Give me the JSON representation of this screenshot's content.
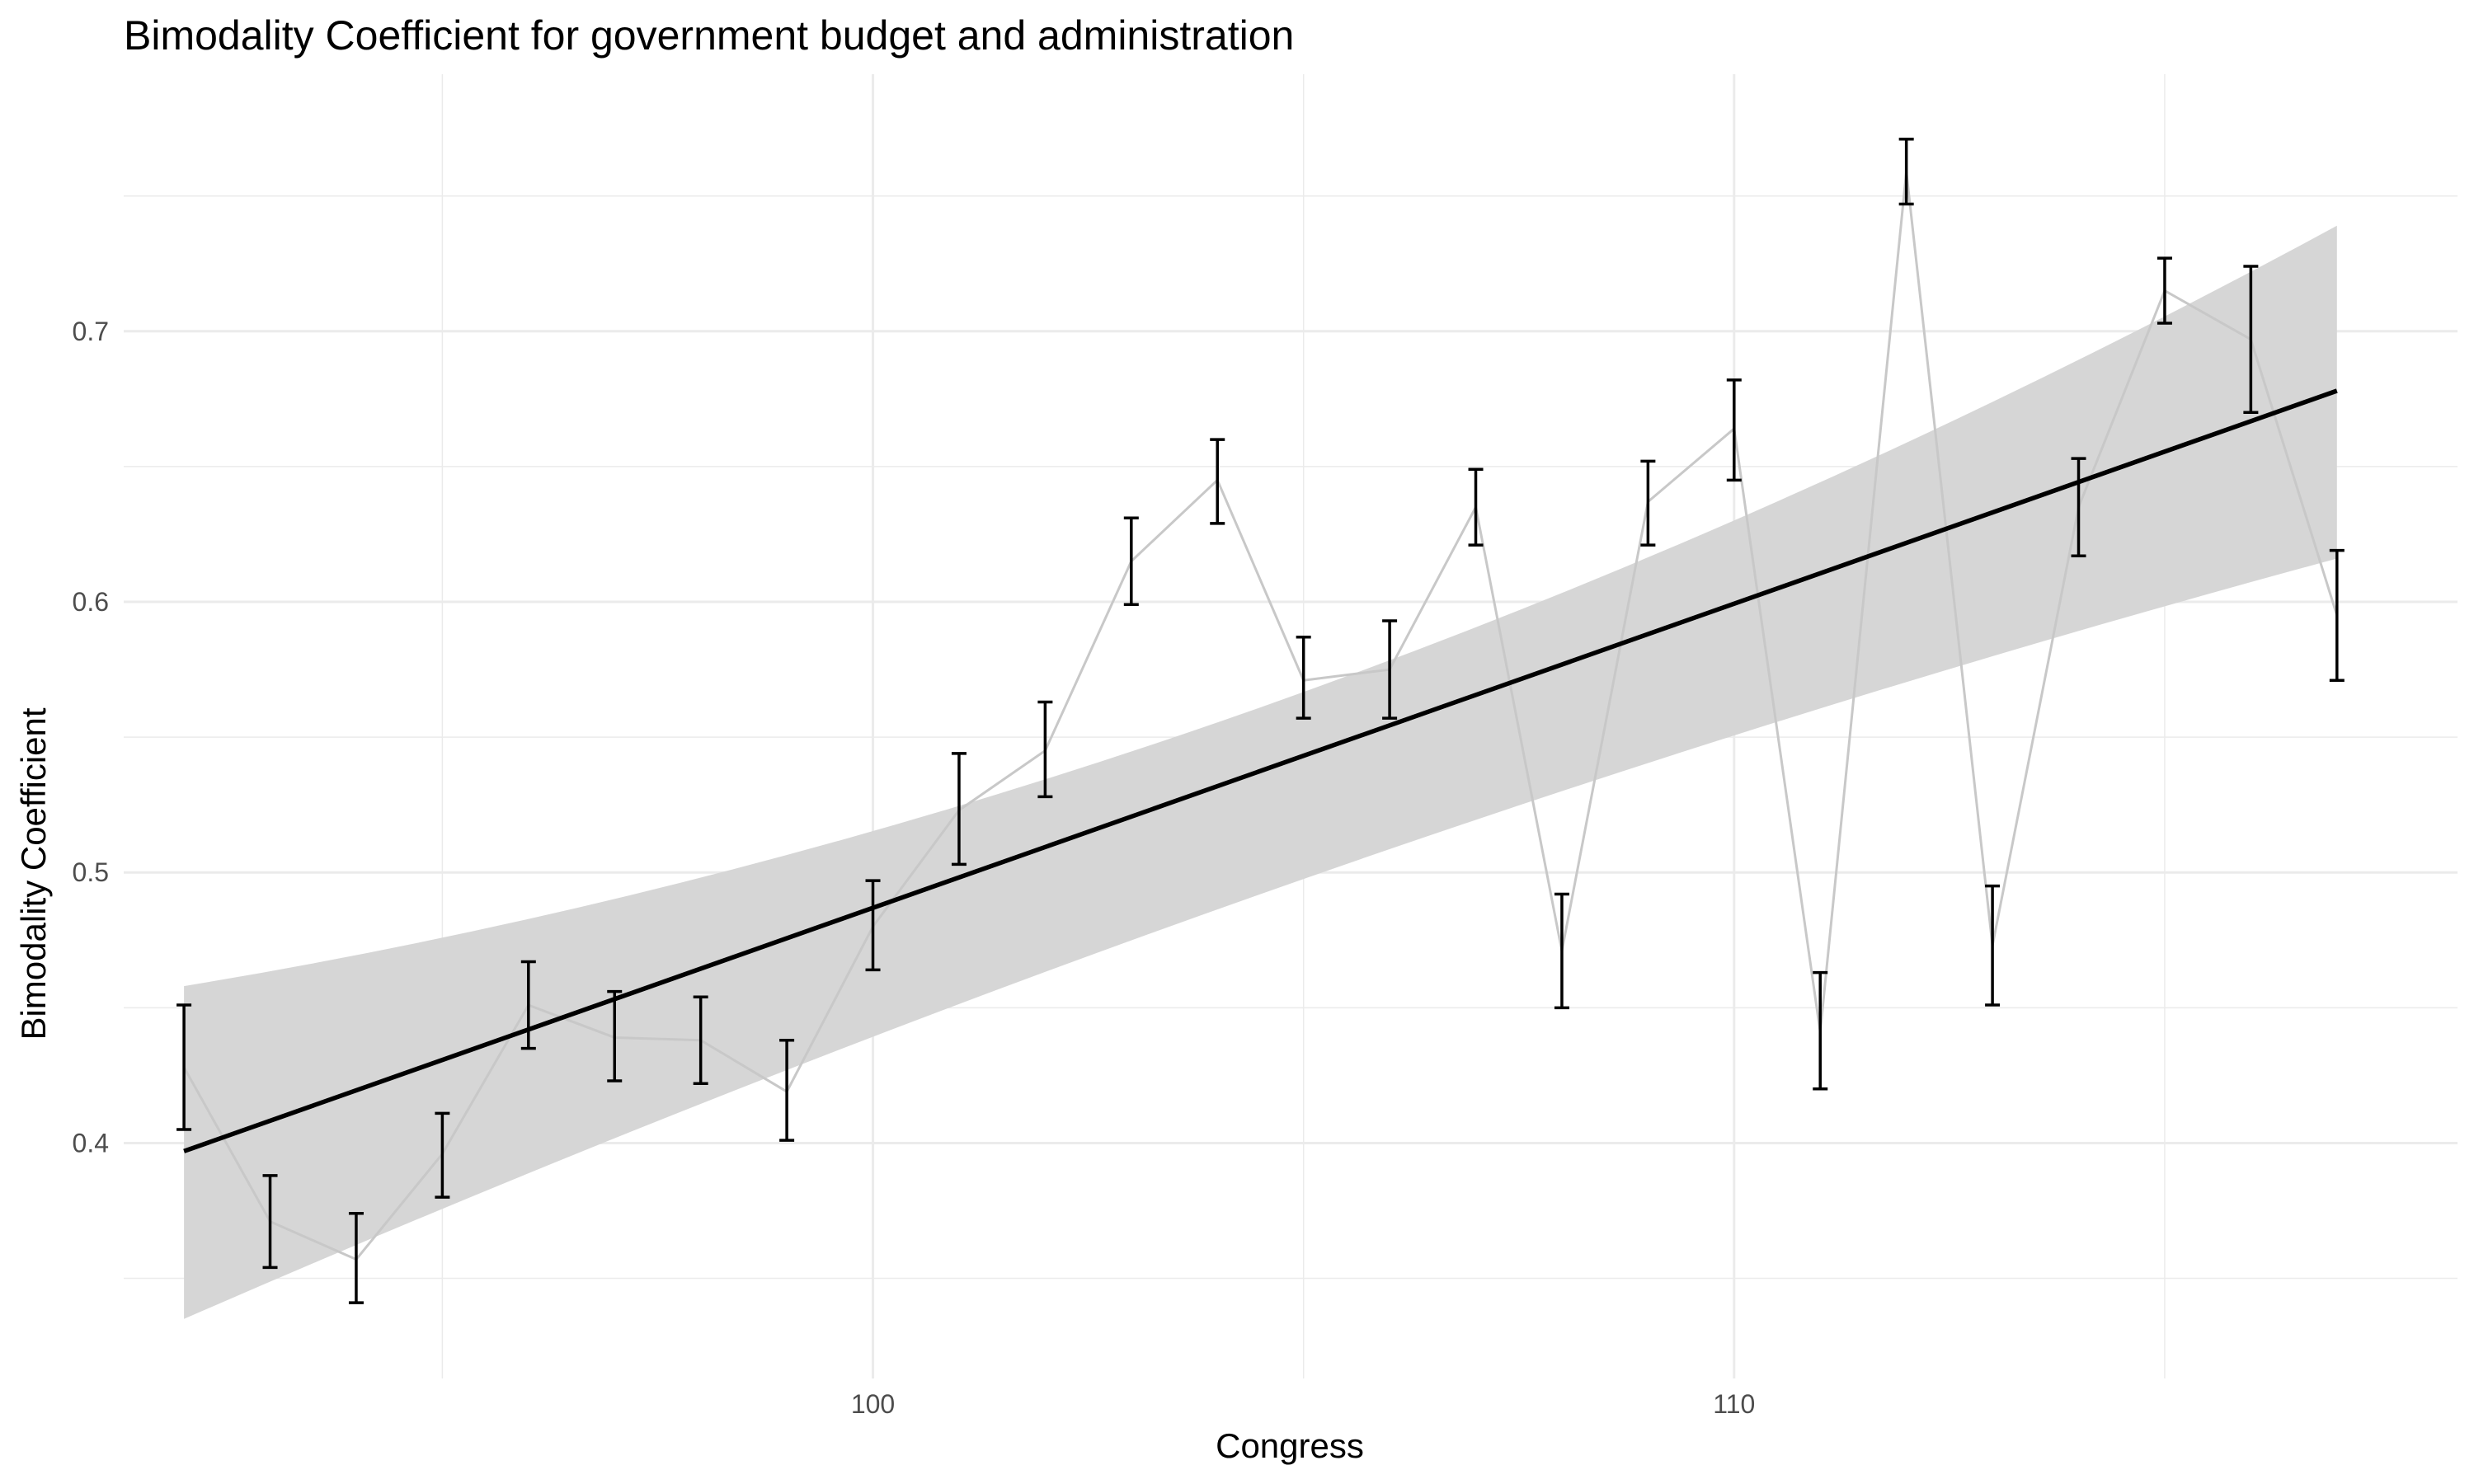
{
  "chart_data": {
    "type": "line",
    "title": "Bimodality Coefficient for government budget and administration",
    "xlabel": "Congress",
    "ylabel": "Bimodality Coefficient",
    "x_ticks": [
      100,
      110
    ],
    "y_ticks": [
      0.4,
      0.5,
      0.6,
      0.7
    ],
    "xlim": [
      91.3,
      118.4
    ],
    "ylim": [
      0.313,
      0.795
    ],
    "grid": true,
    "series": [
      {
        "values": [
          {
            "x": 92,
            "y": 0.428,
            "lo": 0.405,
            "hi": 0.451
          },
          {
            "x": 93,
            "y": 0.371,
            "lo": 0.354,
            "hi": 0.388
          },
          {
            "x": 94,
            "y": 0.357,
            "lo": 0.341,
            "hi": 0.374
          },
          {
            "x": 95,
            "y": 0.396,
            "lo": 0.38,
            "hi": 0.411
          },
          {
            "x": 96,
            "y": 0.451,
            "lo": 0.435,
            "hi": 0.467
          },
          {
            "x": 97,
            "y": 0.439,
            "lo": 0.423,
            "hi": 0.456
          },
          {
            "x": 98,
            "y": 0.438,
            "lo": 0.422,
            "hi": 0.454
          },
          {
            "x": 99,
            "y": 0.419,
            "lo": 0.401,
            "hi": 0.438
          },
          {
            "x": 100,
            "y": 0.48,
            "lo": 0.464,
            "hi": 0.497
          },
          {
            "x": 101,
            "y": 0.523,
            "lo": 0.503,
            "hi": 0.544
          },
          {
            "x": 102,
            "y": 0.545,
            "lo": 0.528,
            "hi": 0.563
          },
          {
            "x": 103,
            "y": 0.615,
            "lo": 0.599,
            "hi": 0.631
          },
          {
            "x": 104,
            "y": 0.645,
            "lo": 0.629,
            "hi": 0.66
          },
          {
            "x": 105,
            "y": 0.571,
            "lo": 0.557,
            "hi": 0.587
          },
          {
            "x": 106,
            "y": 0.575,
            "lo": 0.557,
            "hi": 0.593
          },
          {
            "x": 107,
            "y": 0.635,
            "lo": 0.621,
            "hi": 0.649
          },
          {
            "x": 108,
            "y": 0.471,
            "lo": 0.45,
            "hi": 0.492
          },
          {
            "x": 109,
            "y": 0.637,
            "lo": 0.621,
            "hi": 0.652
          },
          {
            "x": 110,
            "y": 0.664,
            "lo": 0.645,
            "hi": 0.682
          },
          {
            "x": 111,
            "y": 0.441,
            "lo": 0.42,
            "hi": 0.463
          },
          {
            "x": 112,
            "y": 0.759,
            "lo": 0.747,
            "hi": 0.771
          },
          {
            "x": 113,
            "y": 0.473,
            "lo": 0.451,
            "hi": 0.495
          },
          {
            "x": 114,
            "y": 0.635,
            "lo": 0.617,
            "hi": 0.653
          },
          {
            "x": 115,
            "y": 0.715,
            "lo": 0.703,
            "hi": 0.727
          },
          {
            "x": 116,
            "y": 0.697,
            "lo": 0.67,
            "hi": 0.724
          },
          {
            "x": 117,
            "y": 0.595,
            "lo": 0.571,
            "hi": 0.619
          }
        ]
      }
    ],
    "trend": {
      "method": "linear",
      "x": [
        92,
        117
      ],
      "y": [
        0.397,
        0.678
      ],
      "ci_lo": [
        0.335,
        0.616
      ],
      "ci_hi": [
        0.458,
        0.739
      ],
      "ci_mid": [
        0.492,
        0.561
      ],
      "ci_mid_x": 104.5
    },
    "colors": {
      "line": "#c8c8c8",
      "errorbar": "#000000",
      "trend": "#000000",
      "ribbon": "#d6d6d6",
      "grid": "#ebebeb"
    }
  }
}
